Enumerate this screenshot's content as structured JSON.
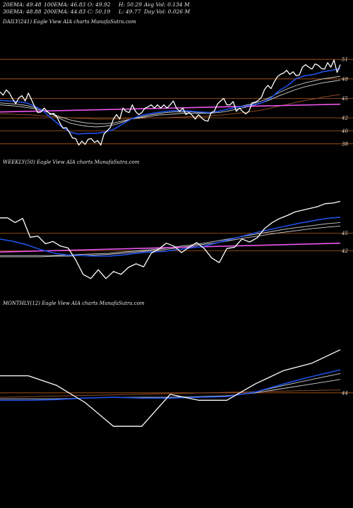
{
  "stats": {
    "row1": [
      "20EMA: 49.48",
      "100EMA: 46.83",
      "O: 49.92",
      "H: 50.29",
      "Avg Vol: 0.134  M"
    ],
    "row2": [
      "30EMA: 48.88",
      "200EMA: 44.83",
      "C: 50.19",
      "L: 49.77",
      "Day Vol: 0.026  M"
    ]
  },
  "colors": {
    "background": "#000000",
    "price": "#ffffff",
    "ema_short": "#1e50e6",
    "ema_mid": "#d0d0d0",
    "ema_long": "#8a4a2a",
    "trend": "#ee55ee",
    "gridline": "#b35a1a"
  },
  "chart_data": [
    {
      "type": "line",
      "caption": "DAILY(241) Eagle   View  AIA charts MunafaSutra.com",
      "ylim": [
        37,
        52
      ],
      "tick_labels": [
        "51",
        "48",
        "45",
        "42",
        "40",
        "38"
      ],
      "tick_values": [
        51,
        48,
        45,
        42,
        40,
        38
      ],
      "series": [
        {
          "role": "price",
          "values": [
            46.0,
            45.5,
            46.3,
            45.8,
            44.9,
            44.2,
            45.1,
            45.4,
            44.6,
            45.8,
            44.8,
            43.7,
            42.8,
            42.9,
            43.5,
            43.0,
            42.5,
            42.7,
            42.2,
            41.2,
            40.4,
            40.5,
            39.8,
            38.9,
            38.8,
            37.8,
            38.4,
            37.9,
            38.7,
            38.8,
            38.2,
            38.5,
            37.8,
            39.5,
            40.0,
            40.5,
            41.8,
            42.5,
            41.8,
            43.5,
            43.0,
            42.8,
            44.0,
            43.0,
            42.5,
            42.8,
            43.5,
            43.7,
            44.0,
            43.5,
            44.0,
            43.5,
            44.0,
            43.5,
            44.0,
            44.6,
            43.5,
            43.0,
            43.5,
            42.5,
            42.8,
            42.4,
            41.8,
            42.5,
            42.0,
            41.6,
            41.5,
            42.8,
            43.0,
            44.1,
            44.6,
            45.0,
            44.0,
            44.0,
            44.5,
            43.0,
            43.5,
            43.0,
            42.6,
            43.0,
            44.3,
            44.4,
            44.7,
            45.2,
            46.4,
            47.0,
            46.5,
            47.5,
            48.3,
            48.7,
            48.9,
            49.3,
            48.7,
            49.1,
            48.5,
            48.6,
            49.8,
            50.2,
            49.8,
            49.5,
            50.3,
            50.1,
            49.6,
            49.5,
            50.5,
            49.8,
            50.9,
            49.0,
            50.2
          ]
        },
        {
          "role": "ema_short",
          "values": [
            44.7,
            44.6,
            44.5,
            44.3,
            43.8,
            43.0,
            41.8,
            40.7,
            39.8,
            39.5,
            39.6,
            39.6,
            39.8,
            40.2,
            41.0,
            41.8,
            42.3,
            42.6,
            42.8,
            43.0,
            43.1,
            43.1,
            43.0,
            42.9,
            42.8,
            43.0,
            43.3,
            43.6,
            43.8,
            44.0,
            44.3,
            45.0,
            46.2,
            47.0,
            48.1,
            48.5,
            48.7,
            49.1,
            49.3,
            49.6
          ]
        },
        {
          "role": "ema_mid_1",
          "values": [
            44.3,
            44.2,
            44.1,
            43.9,
            43.6,
            43.2,
            42.5,
            41.8,
            41.2,
            40.9,
            40.7,
            40.6,
            40.7,
            40.9,
            41.3,
            41.8,
            42.1,
            42.4,
            42.6,
            42.8,
            42.9,
            42.9,
            42.9,
            42.8,
            42.8,
            43.0,
            43.3,
            43.6,
            43.9,
            44.2,
            44.6,
            45.2,
            45.9,
            46.5,
            47.0,
            47.4,
            47.7,
            48.0,
            48.2,
            48.4
          ]
        },
        {
          "role": "ema_mid_2",
          "values": [
            44.0,
            43.9,
            43.8,
            43.6,
            43.4,
            43.1,
            42.6,
            42.1,
            41.7,
            41.4,
            41.2,
            41.1,
            41.1,
            41.2,
            41.5,
            41.8,
            42.0,
            42.2,
            42.4,
            42.5,
            42.6,
            42.7,
            42.7,
            42.7,
            42.7,
            42.8,
            43.0,
            43.3,
            43.6,
            43.9,
            44.3,
            44.8,
            45.4,
            45.9,
            46.4,
            46.8,
            47.1,
            47.4,
            47.6,
            47.8
          ]
        },
        {
          "role": "ema_long",
          "values": [
            42.6,
            42.6,
            42.5,
            42.5,
            42.4,
            42.3,
            42.2,
            42.1,
            42.0,
            41.9,
            41.9,
            41.8,
            41.8,
            41.8,
            41.8,
            41.9,
            41.9,
            42.0,
            42.0,
            42.0,
            42.1,
            42.1,
            42.2,
            42.2,
            42.3,
            42.4,
            42.5,
            42.7,
            42.8,
            43.0,
            43.2,
            43.5,
            43.8,
            44.1,
            44.4,
            44.7,
            44.9,
            45.2,
            45.4,
            45.6
          ]
        },
        {
          "role": "trend",
          "values": [
            42.9,
            44.1
          ]
        }
      ]
    },
    {
      "type": "line",
      "caption": "WEEKLY(50) Eagle   View  AIA charts MunafaSutra.com",
      "ylim": [
        35,
        52
      ],
      "tick_labels": [
        "45",
        "42"
      ],
      "tick_values": [
        45,
        42
      ],
      "series": [
        {
          "role": "price",
          "values": [
            47.6,
            47.6,
            46.8,
            47.5,
            44.3,
            44.5,
            43.2,
            43.6,
            42.8,
            42.5,
            40.5,
            38.0,
            37.3,
            38.8,
            37.3,
            38.5,
            38.0,
            39.2,
            39.8,
            39.3,
            41.6,
            42.3,
            43.3,
            42.8,
            41.7,
            42.6,
            43.4,
            42.4,
            40.8,
            40.0,
            42.4,
            42.6,
            44.0,
            43.5,
            44.2,
            45.8,
            46.8,
            47.5,
            48.0,
            48.6,
            48.9,
            49.2,
            49.5,
            50.0,
            50.1,
            50.4
          ]
        },
        {
          "role": "ema_short",
          "values": [
            44.0,
            43.6,
            43.0,
            42.2,
            41.6,
            41.3,
            41.2,
            41.1,
            41.1,
            41.3,
            41.6,
            41.8,
            41.9,
            42.2,
            42.5,
            42.8,
            43.4,
            44.0,
            44.6,
            45.2,
            45.7,
            46.2,
            46.7,
            47.1,
            47.5,
            47.7
          ]
        },
        {
          "role": "ema_mid_1",
          "values": [
            41.2,
            41.2,
            41.2,
            41.2,
            41.2,
            41.3,
            41.4,
            41.5,
            41.6,
            41.8,
            42.0,
            42.2,
            42.4,
            42.7,
            43.0,
            43.3,
            43.7,
            44.1,
            44.5,
            44.9,
            45.3,
            45.7,
            46.0,
            46.3,
            46.6,
            46.8
          ]
        },
        {
          "role": "ema_mid_2",
          "values": [
            41.0,
            41.0,
            41.0,
            41.0,
            41.1,
            41.1,
            41.2,
            41.3,
            41.4,
            41.6,
            41.8,
            42.0,
            42.2,
            42.5,
            42.8,
            43.1,
            43.4,
            43.8,
            44.2,
            44.5,
            44.9,
            45.2,
            45.5,
            45.8,
            46.0,
            46.2
          ]
        },
        {
          "role": "trend",
          "values": [
            41.8,
            43.3
          ]
        }
      ]
    },
    {
      "type": "line",
      "caption": "MONTHLY(12) Eagle   View  AIA charts MunafaSutra.com",
      "ylim": [
        38,
        53
      ],
      "tick_labels": [
        "44"
      ],
      "tick_values": [
        44
      ],
      "series": [
        {
          "role": "price",
          "values": [
            46.3,
            46.3,
            45.0,
            42.7,
            39.5,
            39.5,
            43.8,
            43.0,
            43.0,
            45.2,
            47.0,
            48.0,
            49.8
          ]
        },
        {
          "role": "ema_short",
          "values": [
            43.0,
            43.0,
            43.1,
            43.3,
            43.4,
            43.3,
            43.3,
            43.4,
            43.5,
            44.1,
            45.2,
            46.2,
            47.1
          ]
        },
        {
          "role": "ema_mid_1",
          "values": [
            43.0,
            43.0,
            43.1,
            43.3,
            43.4,
            43.3,
            43.3,
            43.4,
            43.5,
            44.1,
            45.0,
            45.8,
            46.6
          ]
        },
        {
          "role": "ema_mid_2",
          "values": [
            43.2,
            43.2,
            43.2,
            43.3,
            43.4,
            43.4,
            43.4,
            43.5,
            43.6,
            44.0,
            44.6,
            45.2,
            45.8
          ]
        },
        {
          "role": "ema_long",
          "values": [
            43.4,
            44.4
          ]
        }
      ]
    }
  ]
}
